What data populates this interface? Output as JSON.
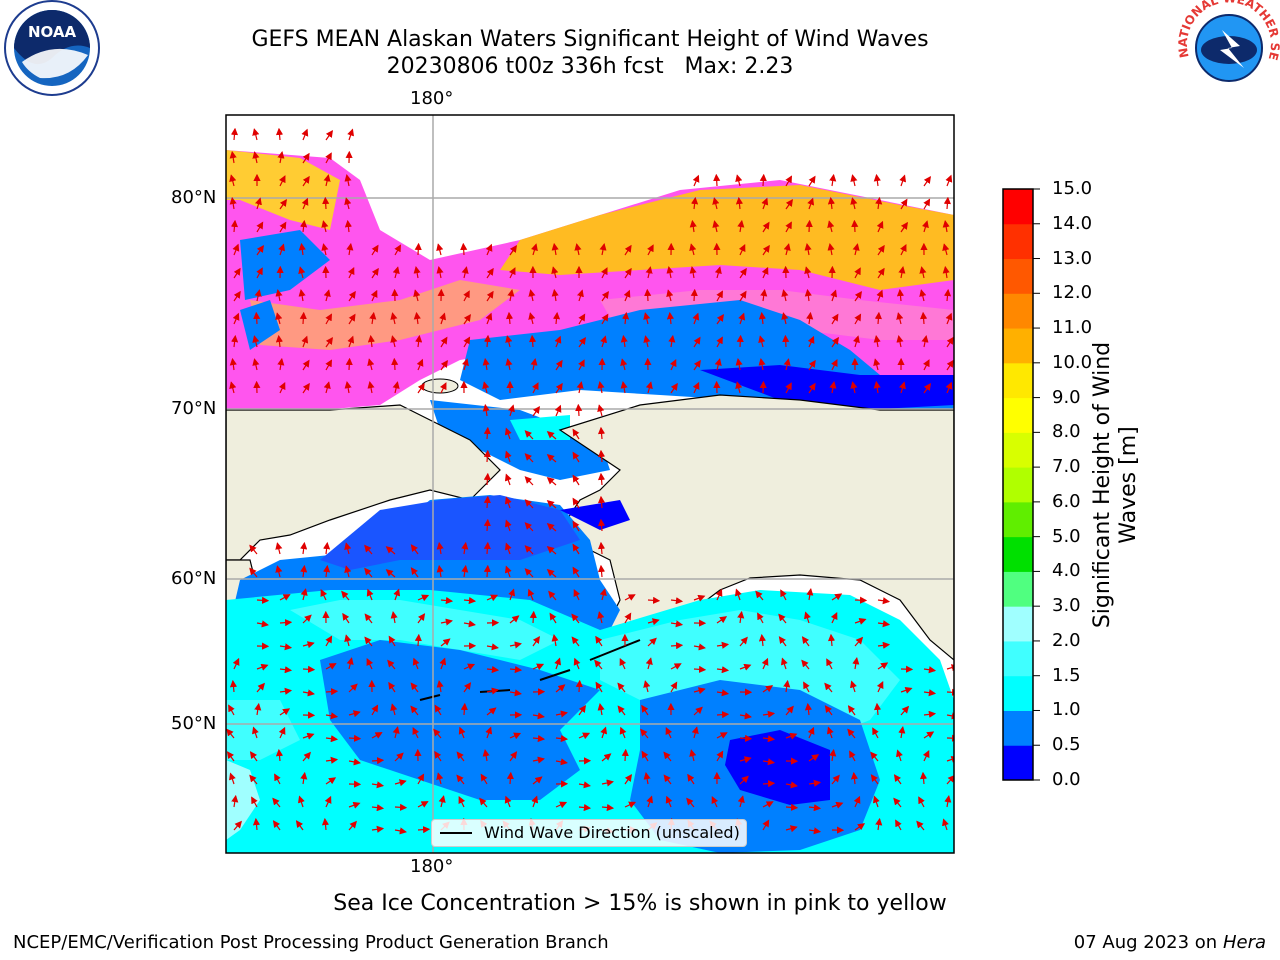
{
  "title_line1": "GEFS MEAN Alaskan Waters Significant Height of Wind Waves",
  "title_line2": "20230806 t00z 336h fcst   Max: 2.23",
  "lon_label_top": "180°",
  "lon_label_bottom": "180°",
  "lat_labels": [
    "80°N",
    "70°N",
    "60°N",
    "50°N"
  ],
  "legend_text": "Wind Wave Direction (unscaled)",
  "colorbar": {
    "label": "Significant Height of Wind\nWaves [m]",
    "ticks": [
      "15.0",
      "14.0",
      "13.0",
      "12.0",
      "11.0",
      "10.0",
      "9.0",
      "8.0",
      "7.0",
      "6.0",
      "5.0",
      "4.0",
      "3.0",
      "2.0",
      "1.5",
      "1.0",
      "0.5",
      "0.0"
    ],
    "colors": [
      "#0000ff",
      "#0080ff",
      "#00ffff",
      "#40ffff",
      "#a0ffff",
      "#50ff80",
      "#00e000",
      "#60ee00",
      "#b0ff00",
      "#d8ff00",
      "#ffff00",
      "#ffe800",
      "#ffb000",
      "#ff8800",
      "#ff5800",
      "#ff3000",
      "#ff0000"
    ]
  },
  "note": "Sea Ice Concentration > 15% is shown in pink to yellow",
  "footer_left": "NCEP/EMC/Verification Post Processing Product Generation Branch",
  "footer_date": "07 Aug 2023",
  "footer_on": "on",
  "footer_host": "Hera",
  "logo_left_text": "NOAA",
  "logo_right_text": "NATIONAL WEATHER SERVICE"
}
